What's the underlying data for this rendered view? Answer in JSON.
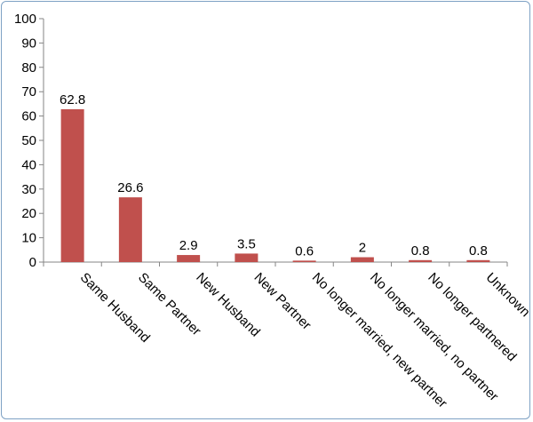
{
  "chart_data": {
    "type": "bar",
    "categories": [
      "Same Husband",
      "Same Partner",
      "New Husband",
      "New Partner",
      "No longer married, new partner",
      "No longer married, no partner",
      "No longer partnered",
      "Unknown"
    ],
    "values": [
      62.8,
      26.6,
      2.9,
      3.5,
      0.6,
      2,
      0.8,
      0.8
    ],
    "data_labels": [
      "62.8",
      "26.6",
      "2.9",
      "3.5",
      "0.6",
      "2",
      "0.8",
      "0.8"
    ],
    "y_ticks": [
      0,
      10,
      20,
      30,
      40,
      50,
      60,
      70,
      80,
      90,
      100
    ],
    "ylim": [
      0,
      100
    ],
    "title": "",
    "xlabel": "",
    "ylabel": "",
    "grid": false,
    "legend": "none",
    "bar_color": "#c0504d",
    "axis_color": "#868686"
  }
}
